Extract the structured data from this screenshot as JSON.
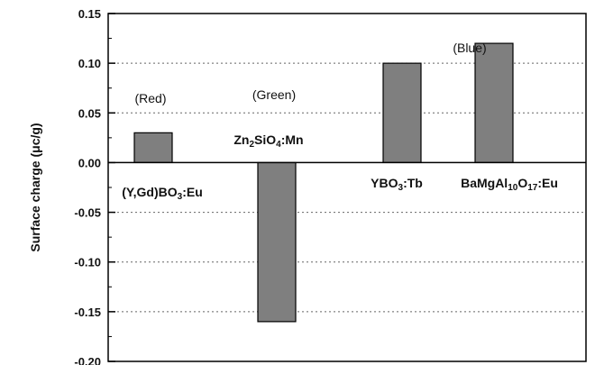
{
  "chart_data": {
    "type": "bar",
    "ylabel": "Surface charge  (μc/g)",
    "ylim": [
      -0.2,
      0.15
    ],
    "yticks": [
      "0.15",
      "0.10",
      "0.05",
      "0.00",
      "-0.05",
      "-0.10",
      "-0.15",
      "-0.20"
    ],
    "grid": "horizontal dotted",
    "bar_color": "#7f7f7f",
    "categories": [
      {
        "name": "(Y,Gd)BO3:Eu",
        "value": 0.03,
        "group": "(Red)"
      },
      {
        "name": "Zn2SiO4:Mn",
        "value": -0.16,
        "group": "(Green)"
      },
      {
        "name": "YBO3:Tb",
        "value": 0.1,
        "group": ""
      },
      {
        "name": "BaMgAl10O17:Eu",
        "value": 0.12,
        "group": "(Blue)"
      }
    ],
    "values": [
      0.03,
      -0.16,
      0.1,
      0.12
    ]
  }
}
